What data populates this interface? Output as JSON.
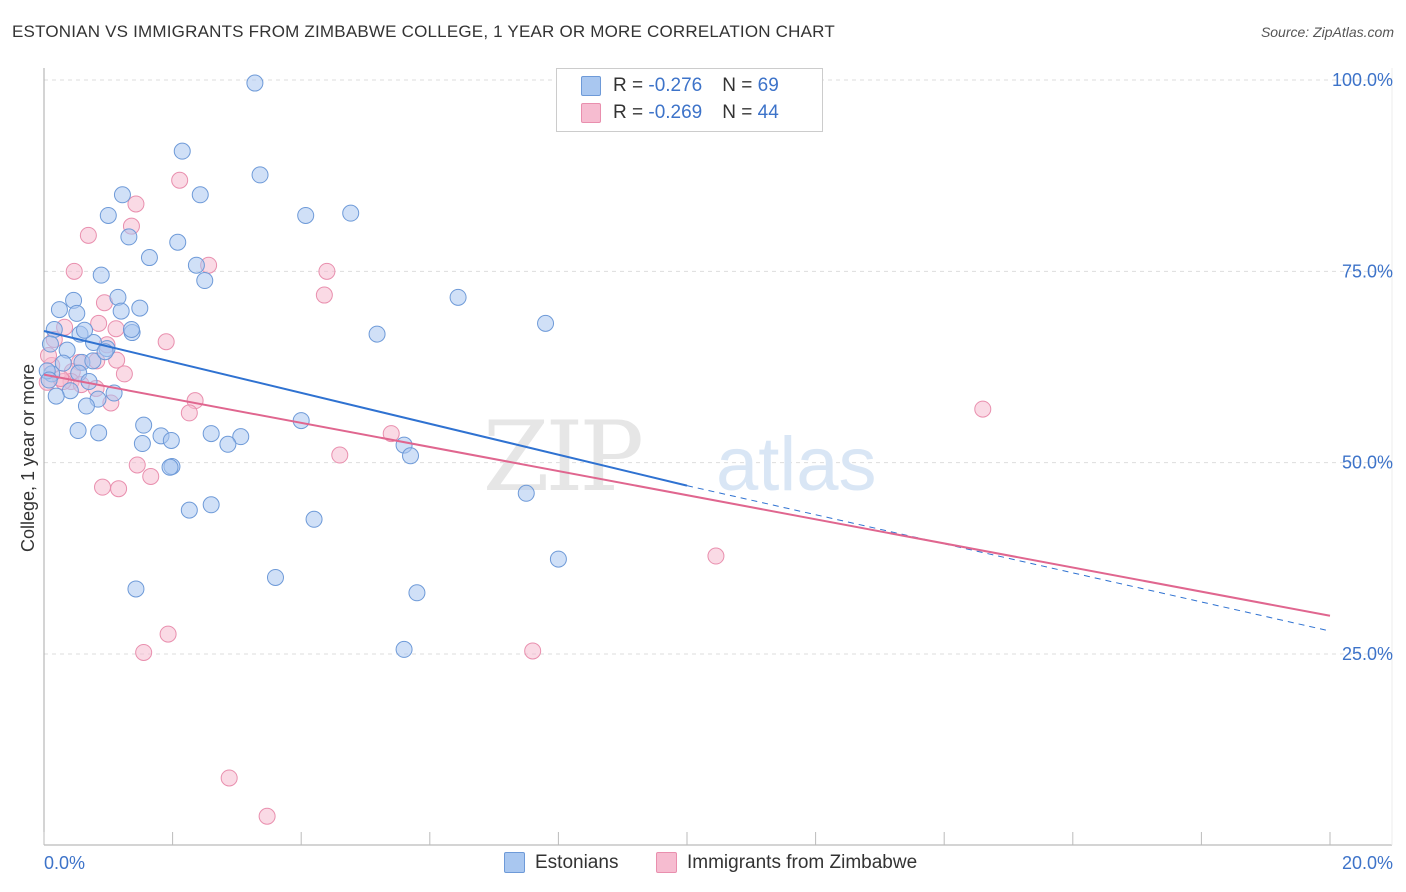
{
  "title": "ESTONIAN VS IMMIGRANTS FROM ZIMBABWE COLLEGE, 1 YEAR OR MORE CORRELATION CHART",
  "source": "Source: ZipAtlas.com",
  "watermark": {
    "zip": "ZIP",
    "atlas": "atlas"
  },
  "legend": {
    "rows": [
      {
        "r_label": "R = ",
        "r_value": "-0.276",
        "n_label": "N = ",
        "n_value": "69"
      },
      {
        "r_label": "R = ",
        "r_value": "-0.269",
        "n_label": "N = ",
        "n_value": "44"
      }
    ]
  },
  "colors": {
    "blue_fill": "#a9c7f0",
    "blue_stroke": "#6e9ad8",
    "blue_line": "#2f72d1",
    "pink_fill": "#f6bcd0",
    "pink_stroke": "#e98fae",
    "pink_line": "#e0668f",
    "axis_text": "#3d73c9",
    "grid": "#dddddd"
  },
  "chart_data": {
    "type": "scatter",
    "title": "ESTONIAN VS IMMIGRANTS FROM ZIMBABWE COLLEGE, 1 YEAR OR MORE CORRELATION CHART",
    "xlabel": "",
    "ylabel": "College, 1 year or more",
    "xlim": [
      0,
      20
    ],
    "ylim": [
      0,
      102
    ],
    "x_tick_labels": [
      "0.0%",
      "20.0%"
    ],
    "y_tick_labels": [
      "100.0%",
      "75.0%",
      "50.0%",
      "25.0%"
    ],
    "y_ticks": [
      100,
      75,
      50,
      25
    ],
    "grid": true,
    "legend_position": "bottom",
    "series": [
      {
        "name": "Estonians",
        "color": "#a9c7f0",
        "trend": {
          "x": [
            0,
            10
          ],
          "y": [
            67.2,
            47.0
          ],
          "dashed_extension_to": [
            20,
            28.0
          ]
        },
        "points": [
          [
            3.28,
            99.6
          ],
          [
            2.15,
            90.7
          ],
          [
            3.36,
            87.6
          ],
          [
            1.22,
            85.0
          ],
          [
            2.43,
            85.0
          ],
          [
            1.0,
            82.3
          ],
          [
            4.07,
            82.3
          ],
          [
            4.77,
            82.6
          ],
          [
            1.32,
            79.5
          ],
          [
            2.08,
            78.8
          ],
          [
            1.64,
            76.8
          ],
          [
            2.37,
            75.8
          ],
          [
            0.89,
            74.5
          ],
          [
            2.5,
            73.8
          ],
          [
            0.46,
            71.2
          ],
          [
            1.15,
            71.6
          ],
          [
            1.49,
            70.2
          ],
          [
            6.44,
            71.6
          ],
          [
            0.24,
            70.0
          ],
          [
            0.51,
            69.5
          ],
          [
            1.2,
            69.8
          ],
          [
            7.8,
            68.2
          ],
          [
            0.16,
            67.4
          ],
          [
            0.56,
            66.8
          ],
          [
            1.37,
            67.0
          ],
          [
            1.36,
            67.4
          ],
          [
            5.18,
            66.8
          ],
          [
            0.77,
            65.7
          ],
          [
            0.36,
            64.7
          ],
          [
            0.98,
            64.9
          ],
          [
            0.59,
            63.1
          ],
          [
            0.76,
            63.3
          ],
          [
            0.3,
            63.0
          ],
          [
            0.54,
            61.7
          ],
          [
            0.12,
            61.6
          ],
          [
            0.7,
            60.6
          ],
          [
            0.41,
            59.4
          ],
          [
            0.84,
            58.3
          ],
          [
            0.66,
            57.4
          ],
          [
            4.0,
            55.5
          ],
          [
            1.55,
            54.9
          ],
          [
            0.85,
            53.9
          ],
          [
            1.82,
            53.5
          ],
          [
            2.6,
            53.8
          ],
          [
            3.06,
            53.4
          ],
          [
            0.53,
            54.2
          ],
          [
            1.98,
            52.9
          ],
          [
            1.53,
            52.5
          ],
          [
            2.86,
            52.4
          ],
          [
            5.6,
            52.3
          ],
          [
            5.7,
            50.9
          ],
          [
            1.99,
            49.5
          ],
          [
            1.96,
            49.4
          ],
          [
            7.5,
            46.0
          ],
          [
            2.6,
            44.5
          ],
          [
            2.26,
            43.8
          ],
          [
            4.2,
            42.6
          ],
          [
            8.0,
            37.4
          ],
          [
            3.6,
            35.0
          ],
          [
            1.43,
            33.5
          ],
          [
            5.8,
            33.0
          ],
          [
            5.6,
            25.6
          ],
          [
            0.1,
            65.5
          ],
          [
            0.05,
            62.0
          ],
          [
            0.08,
            60.8
          ],
          [
            0.19,
            58.7
          ],
          [
            1.09,
            59.1
          ],
          [
            0.95,
            64.5
          ],
          [
            0.63,
            67.3
          ]
        ]
      },
      {
        "name": "Immigrants from Zimbabwe",
        "color": "#f6bcd0",
        "trend": {
          "x": [
            0,
            20
          ],
          "y": [
            61.5,
            30.0
          ]
        },
        "points": [
          [
            2.11,
            86.9
          ],
          [
            1.43,
            83.8
          ],
          [
            0.69,
            79.7
          ],
          [
            1.36,
            80.9
          ],
          [
            2.56,
            75.8
          ],
          [
            0.47,
            75.0
          ],
          [
            4.4,
            75.0
          ],
          [
            4.36,
            71.9
          ],
          [
            0.94,
            70.9
          ],
          [
            0.32,
            67.7
          ],
          [
            0.85,
            68.2
          ],
          [
            1.12,
            67.5
          ],
          [
            1.9,
            65.8
          ],
          [
            0.16,
            66.1
          ],
          [
            0.98,
            65.4
          ],
          [
            0.82,
            63.3
          ],
          [
            1.13,
            63.4
          ],
          [
            0.55,
            63.1
          ],
          [
            0.44,
            61.9
          ],
          [
            1.25,
            61.6
          ],
          [
            0.42,
            60.6
          ],
          [
            0.3,
            60.6
          ],
          [
            0.81,
            59.7
          ],
          [
            0.58,
            60.2
          ],
          [
            0.05,
            60.5
          ],
          [
            1.04,
            57.8
          ],
          [
            2.35,
            58.1
          ],
          [
            2.26,
            56.5
          ],
          [
            14.6,
            57.0
          ],
          [
            5.4,
            53.8
          ],
          [
            4.6,
            51.0
          ],
          [
            1.45,
            49.7
          ],
          [
            1.66,
            48.2
          ],
          [
            0.91,
            46.8
          ],
          [
            1.16,
            46.6
          ],
          [
            10.45,
            37.8
          ],
          [
            1.93,
            27.6
          ],
          [
            1.55,
            25.2
          ],
          [
            7.6,
            25.4
          ],
          [
            2.88,
            8.8
          ],
          [
            3.47,
            3.8
          ],
          [
            0.12,
            62.7
          ],
          [
            0.26,
            61.0
          ],
          [
            0.07,
            64.0
          ]
        ]
      }
    ]
  }
}
